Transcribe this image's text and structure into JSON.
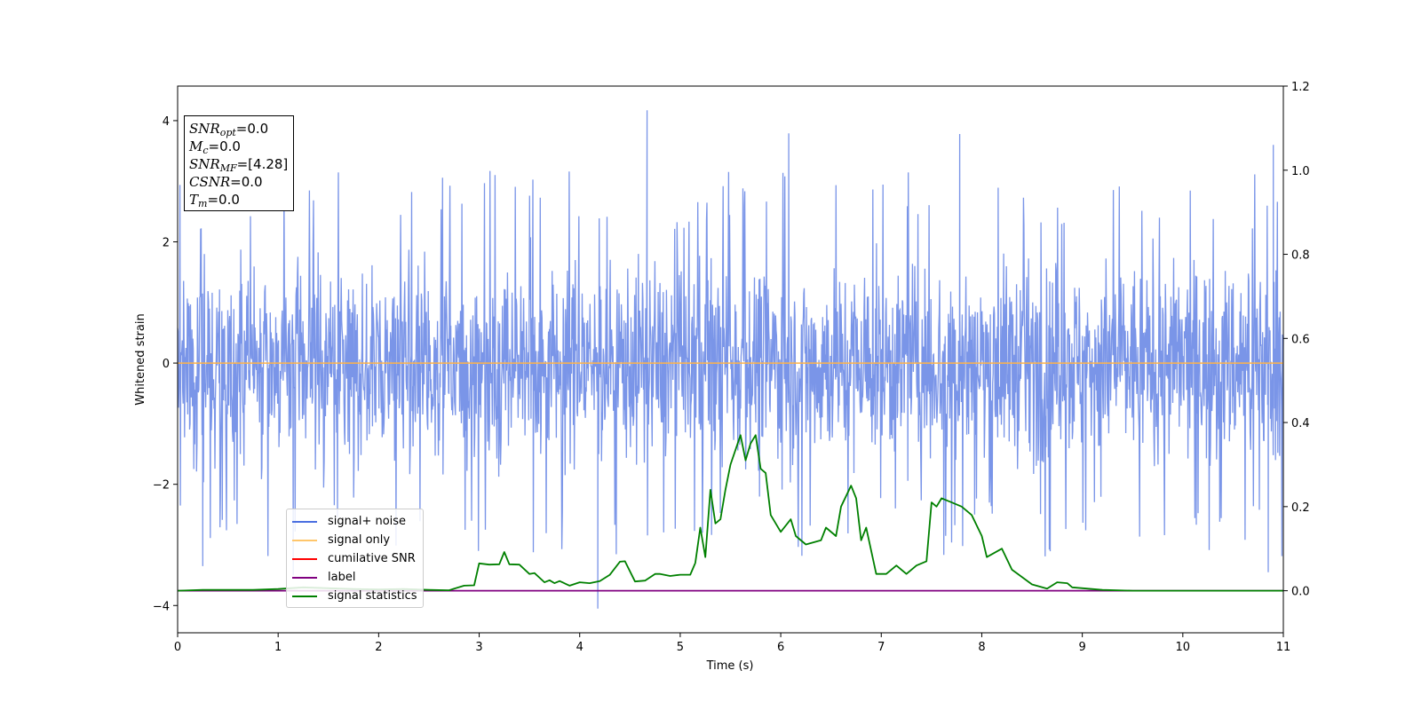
{
  "chart_data": {
    "type": "line",
    "xlabel": "Time (s)",
    "ylabel": "Whitened strain",
    "xlim": [
      0,
      11
    ],
    "ylim": [
      -4.45,
      4.57
    ],
    "y2lim": [
      -0.1,
      1.2
    ],
    "x_ticks": [
      "0",
      "1",
      "2",
      "3",
      "4",
      "5",
      "6",
      "7",
      "8",
      "9",
      "10",
      "11"
    ],
    "y_ticks": [
      "−4",
      "−2",
      "0",
      "2",
      "4"
    ],
    "y2_ticks": [
      "0.0",
      "0.2",
      "0.4",
      "0.6",
      "0.8",
      "1.0",
      "1.2"
    ],
    "stats_box": [
      {
        "name": "SNR",
        "sub": "opt",
        "value": "=0.0"
      },
      {
        "name": "M",
        "sub": "c",
        "value": "=0.0"
      },
      {
        "name": "SNR",
        "sub": "MF",
        "value": "=[4.28]"
      },
      {
        "name": "CSNR",
        "sub": "",
        "value": "=0.0"
      },
      {
        "name": "T",
        "sub": "m",
        "value": "=0.0"
      }
    ],
    "legend": {
      "placement": "lower-left",
      "entries": [
        {
          "label": "signal+ noise",
          "color": "#4a6fe0"
        },
        {
          "label": "signal only",
          "color": "#ffc66b"
        },
        {
          "label": "cumilative SNR",
          "color": "#ff0000"
        },
        {
          "label": "label",
          "color": "#800080"
        },
        {
          "label": "signal statistics",
          "color": "#008000"
        }
      ]
    },
    "series": [
      {
        "name": "signal+ noise",
        "axis": "left",
        "color": "#6f8ce6",
        "sampling": "dense noise, amplitude roughly within ±2.5 with spikes to ±4.2",
        "spikes": [
          {
            "x": 4.67,
            "y": 4.17
          },
          {
            "x": 6.08,
            "y": 3.79
          },
          {
            "x": 7.78,
            "y": 3.78
          },
          {
            "x": 10.9,
            "y": 3.6
          },
          {
            "x": 4.18,
            "y": -4.05
          },
          {
            "x": 1.15,
            "y": -3.5
          },
          {
            "x": 10.85,
            "y": -3.45
          },
          {
            "x": 0.25,
            "y": -3.35
          }
        ]
      },
      {
        "name": "signal only",
        "axis": "left",
        "color": "#ffb347",
        "x": [
          0,
          11
        ],
        "y": [
          0,
          0
        ]
      },
      {
        "name": "cumilative SNR",
        "axis": "right",
        "color": "#ff0000",
        "x": [],
        "y": []
      },
      {
        "name": "label",
        "axis": "right",
        "color": "#800080",
        "x": [
          0,
          11
        ],
        "y": [
          0,
          0
        ]
      },
      {
        "name": "signal statistics",
        "axis": "right",
        "color": "#008000",
        "x": [
          0,
          0.25,
          0.5,
          0.75,
          1.0,
          1.25,
          1.5,
          1.75,
          2.0,
          2.25,
          2.5,
          2.7,
          2.85,
          2.95,
          3.0,
          3.1,
          3.2,
          3.25,
          3.3,
          3.4,
          3.5,
          3.55,
          3.65,
          3.7,
          3.75,
          3.8,
          3.9,
          4.0,
          4.1,
          4.2,
          4.3,
          4.4,
          4.45,
          4.55,
          4.65,
          4.75,
          4.8,
          4.9,
          5.0,
          5.1,
          5.15,
          5.2,
          5.25,
          5.3,
          5.35,
          5.4,
          5.45,
          5.5,
          5.6,
          5.65,
          5.7,
          5.75,
          5.8,
          5.85,
          5.9,
          6.0,
          6.1,
          6.15,
          6.25,
          6.4,
          6.45,
          6.55,
          6.6,
          6.7,
          6.75,
          6.8,
          6.85,
          6.95,
          7.05,
          7.15,
          7.25,
          7.35,
          7.45,
          7.5,
          7.55,
          7.6,
          7.7,
          7.8,
          7.9,
          8.0,
          8.05,
          8.2,
          8.3,
          8.5,
          8.65,
          8.75,
          8.85,
          8.9,
          9.2,
          9.5,
          10.0,
          10.5,
          11.0
        ],
        "y": [
          0.0,
          0.002,
          0.002,
          0.002,
          0.004,
          0.008,
          0.006,
          0.004,
          0.003,
          0.004,
          0.002,
          0.001,
          0.012,
          0.013,
          0.065,
          0.062,
          0.063,
          0.092,
          0.063,
          0.062,
          0.04,
          0.042,
          0.02,
          0.025,
          0.018,
          0.023,
          0.012,
          0.02,
          0.018,
          0.023,
          0.038,
          0.069,
          0.07,
          0.022,
          0.024,
          0.04,
          0.04,
          0.035,
          0.038,
          0.038,
          0.066,
          0.15,
          0.08,
          0.24,
          0.16,
          0.17,
          0.24,
          0.3,
          0.37,
          0.31,
          0.35,
          0.37,
          0.29,
          0.28,
          0.18,
          0.14,
          0.17,
          0.13,
          0.11,
          0.12,
          0.15,
          0.13,
          0.2,
          0.25,
          0.22,
          0.12,
          0.15,
          0.04,
          0.04,
          0.06,
          0.04,
          0.06,
          0.07,
          0.21,
          0.2,
          0.22,
          0.21,
          0.2,
          0.18,
          0.13,
          0.08,
          0.1,
          0.05,
          0.015,
          0.005,
          0.02,
          0.018,
          0.008,
          0.002,
          0.0,
          0.0,
          0.0,
          0.0
        ]
      }
    ]
  }
}
